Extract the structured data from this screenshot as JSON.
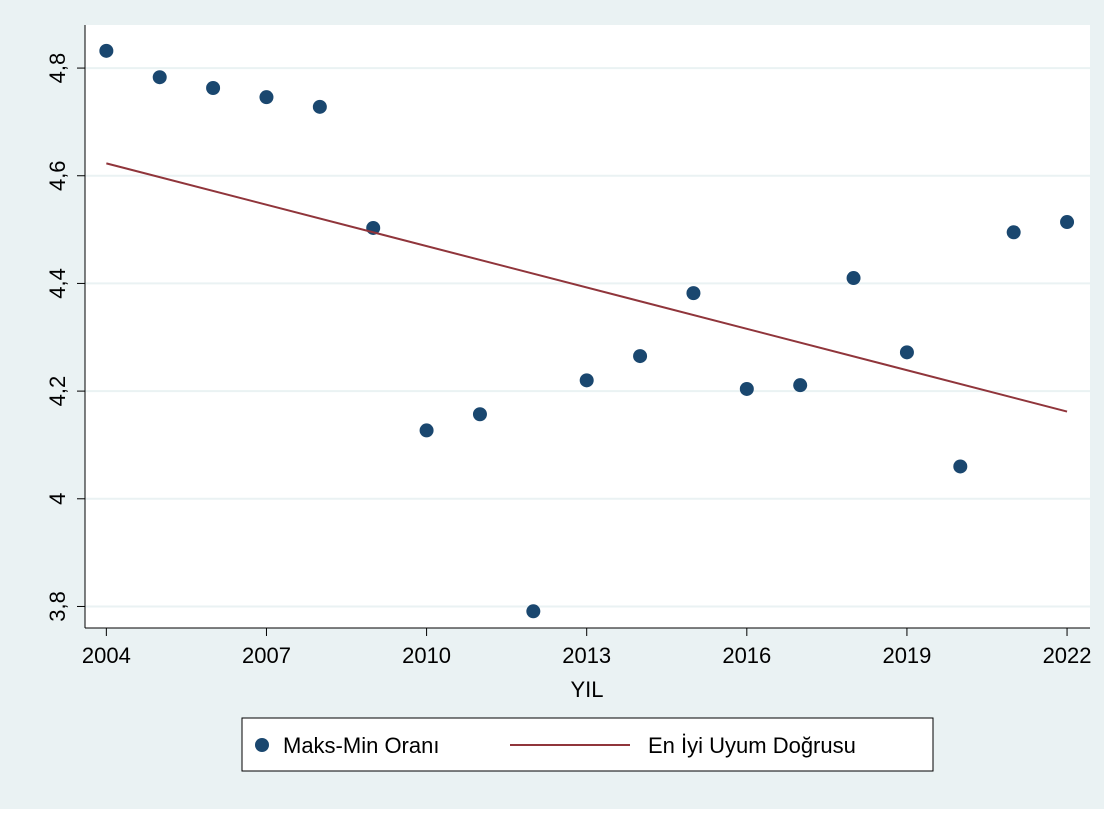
{
  "chart_data": {
    "type": "scatter",
    "xlabel": "YIL",
    "xlim": [
      2003.6,
      2022.43
    ],
    "xticks": [
      2004,
      2007,
      2010,
      2013,
      2016,
      2019,
      2022
    ],
    "ylim": [
      3.76,
      4.88
    ],
    "yticks": [
      {
        "value": 3.8,
        "label": "3,8"
      },
      4,
      {
        "value": 4.2,
        "label": "4,2"
      },
      {
        "value": 4.4,
        "label": "4,4"
      },
      {
        "value": 4.6,
        "label": "4,6"
      },
      {
        "value": 4.8,
        "label": "4,8"
      }
    ],
    "grid": true,
    "legend": "bottom",
    "series": [
      {
        "name": "Maks-Min Oranı",
        "kind": "scatter",
        "color": "#1a476f",
        "x": [
          2004,
          2005,
          2006,
          2007,
          2008,
          2009,
          2010,
          2011,
          2012,
          2013,
          2014,
          2015,
          2016,
          2017,
          2018,
          2019,
          2020,
          2021,
          2022
        ],
        "values": [
          4.832,
          4.783,
          4.763,
          4.746,
          4.728,
          4.503,
          4.127,
          4.157,
          3.791,
          4.22,
          4.265,
          4.382,
          4.204,
          4.211,
          4.41,
          4.272,
          4.06,
          4.495,
          4.514
        ]
      },
      {
        "name": "En İyi Uyum Doğrusu",
        "kind": "line",
        "color": "#90353b",
        "x": [
          2004,
          2022
        ],
        "values": [
          4.623,
          4.162
        ]
      }
    ]
  }
}
